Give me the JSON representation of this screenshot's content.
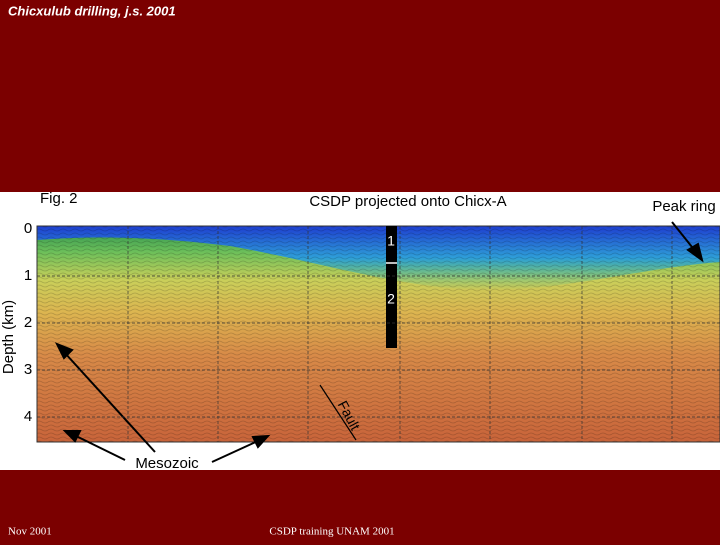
{
  "header": {
    "title": "Chicxulub drilling, j.s. 2001"
  },
  "figure": {
    "label": "Fig. 2",
    "title": "CSDP projected onto Chicx-A",
    "y_axis": {
      "label": "Depth (km)",
      "ticks": [
        0,
        1,
        2,
        3,
        4
      ]
    },
    "borehole_labels": [
      "1",
      "2"
    ],
    "annotations": {
      "peak_ring": "Peak ring",
      "fault": "Fault",
      "mesozoic": "Mesozoic"
    }
  },
  "footer": {
    "left": "Nov 2001",
    "center": "CSDP training UNAM 2001"
  }
}
